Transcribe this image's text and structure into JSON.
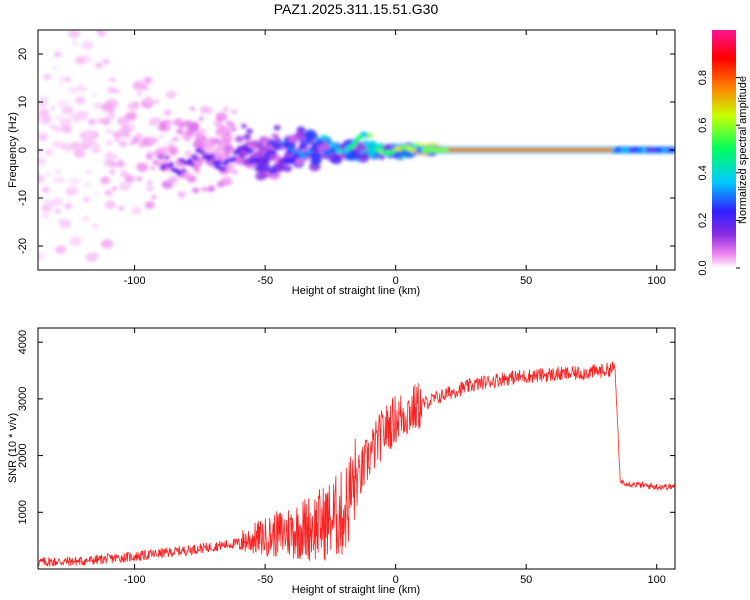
{
  "title": "PAZ1.2025.311.15.51.G30",
  "chart_data": [
    {
      "type": "heatmap",
      "title": "PAZ1.2025.311.15.51.G30",
      "xlabel": "Height of straight line (km)",
      "ylabel": "Frequency (Hz)",
      "xlim": [
        -137,
        107
      ],
      "ylim": [
        -25,
        25
      ],
      "xticks": [
        -100,
        -50,
        0,
        50,
        100
      ],
      "yticks": [
        -20,
        -10,
        0,
        10,
        20
      ],
      "colorbar": {
        "label": "Normalized spectral amplitude",
        "range": [
          0,
          1
        ],
        "ticks": [
          "0.0",
          "0.2",
          "0.4",
          "0.6",
          "0.8"
        ],
        "colormap": [
          "#ffffff",
          "#ee82ee",
          "#8a2be2",
          "#3020ff",
          "#00c8ff",
          "#00ff60",
          "#c8ff00",
          "#ff8000",
          "#ff0000",
          "#ff1493"
        ]
      },
      "description_points": [
        {
          "height_km": -120,
          "spread_hz": 25,
          "amplitude": 0.12
        },
        {
          "height_km": -80,
          "spread_hz": 8,
          "amplitude": 0.25
        },
        {
          "height_km": -50,
          "spread_hz": 5,
          "amplitude": 0.3
        },
        {
          "height_km": -20,
          "spread_hz": 2,
          "amplitude": 0.45
        },
        {
          "height_km": 0,
          "spread_hz": 1,
          "amplitude": 0.6
        },
        {
          "height_km": 30,
          "spread_hz": 0.5,
          "amplitude": 0.95
        },
        {
          "height_km": 80,
          "spread_hz": 0.5,
          "amplitude": 0.95
        },
        {
          "height_km": 95,
          "spread_hz": 1,
          "amplitude": 0.3
        }
      ]
    },
    {
      "type": "line",
      "xlabel": "Height of straight line (km)",
      "ylabel": "SNR (10 * v/v)",
      "xlim": [
        -137,
        107
      ],
      "ylim": [
        0,
        4250
      ],
      "xticks": [
        -100,
        -50,
        0,
        50,
        100
      ],
      "yticks": [
        1000,
        2000,
        3000,
        4000
      ],
      "series": [
        {
          "name": "SNR",
          "color": "#ff2020",
          "x": [
            -137,
            -120,
            -100,
            -80,
            -60,
            -45,
            -30,
            -20,
            -15,
            -10,
            -5,
            0,
            10,
            20,
            30,
            40,
            50,
            60,
            70,
            80,
            84,
            86,
            90,
            100,
            107
          ],
          "y": [
            120,
            140,
            220,
            330,
            460,
            570,
            700,
            900,
            1500,
            2000,
            2400,
            2650,
            2900,
            3100,
            3250,
            3350,
            3400,
            3430,
            3450,
            3500,
            3550,
            1550,
            1500,
            1450,
            1450
          ]
        }
      ]
    }
  ]
}
